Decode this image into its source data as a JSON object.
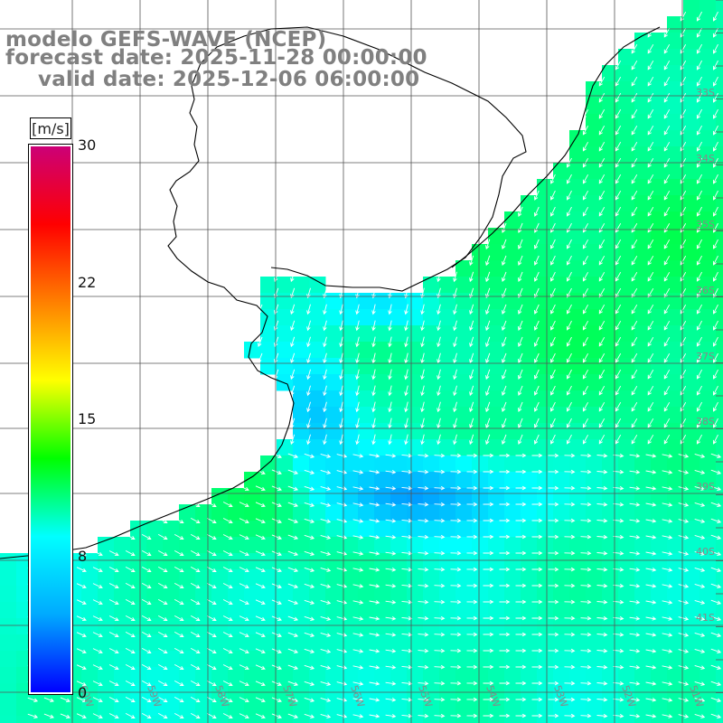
{
  "title": {
    "model": "modelo GEFS-WAVE (NCEP)",
    "forecast": "forecast date: 2025-11-28 00:00:00",
    "valid": "valid date: 2025-12-06 06:00:00"
  },
  "colorbar": {
    "unit": "[m/s]",
    "min": 0,
    "max": 30,
    "ticks": [
      {
        "label": "30",
        "value": 30
      },
      {
        "label": "22",
        "value": 22.5
      },
      {
        "label": "15",
        "value": 15
      },
      {
        "label": "8",
        "value": 7.5
      },
      {
        "label": "0",
        "value": 0
      }
    ],
    "stops": [
      "#0000ff",
      "#00aaff",
      "#00ffff",
      "#00ff00",
      "#ffff00",
      "#ff8000",
      "#ff0000",
      "#cc0077"
    ]
  },
  "axes": {
    "lat_labels": [
      "33S",
      "34S",
      "35S",
      "36S",
      "37S",
      "38S",
      "39S",
      "40S",
      "41S"
    ],
    "lon_labels": [
      "60W",
      "59W",
      "58W",
      "57W",
      "56W",
      "55W",
      "54W",
      "53W",
      "52W",
      "51W"
    ]
  },
  "colors": {
    "land": "#ffffff",
    "grid": "#555555",
    "coast": "#000000",
    "arrow": "#ffffff"
  }
}
